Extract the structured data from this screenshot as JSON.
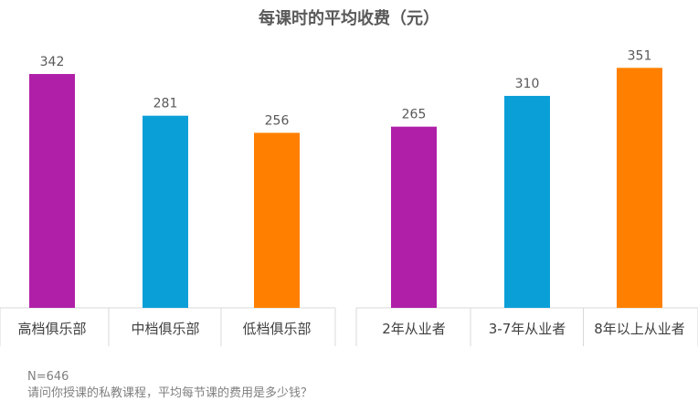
{
  "title": "每课时的平均收费（元）",
  "footnote": {
    "sample": "N=646",
    "question": "请问你授课的私教课程，平均每节课的费用是多少钱？"
  },
  "chart_data": [
    {
      "type": "bar",
      "categories": [
        "高档俱乐部",
        "中档俱乐部",
        "低档俱乐部"
      ],
      "values": [
        342,
        281,
        256
      ],
      "colors": [
        "#b01fa8",
        "#0b9fd8",
        "#ff8000"
      ],
      "ylim": [
        0,
        400
      ],
      "grid": false
    },
    {
      "type": "bar",
      "categories": [
        "2年从业者",
        "3-7年从业者",
        "8年以上从业者"
      ],
      "values": [
        265,
        310,
        351
      ],
      "colors": [
        "#b01fa8",
        "#0b9fd8",
        "#ff8000"
      ],
      "ylim": [
        0,
        400
      ],
      "grid": false
    }
  ]
}
